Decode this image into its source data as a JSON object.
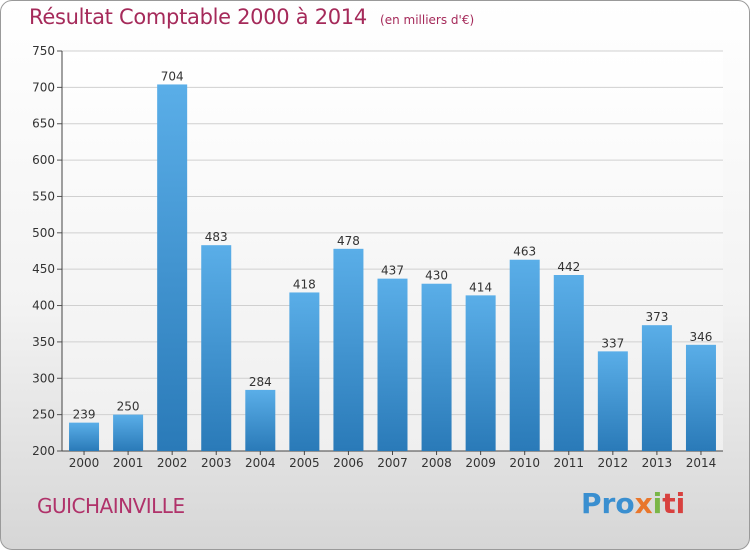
{
  "title": "Résultat Comptable 2000 à 2014",
  "subtitle": "(en milliers d'€)",
  "city": "GUICHAINVILLE",
  "logo": {
    "p1": "Pro",
    "p2": "x",
    "p3": "i",
    "p4": "ti"
  },
  "colors": {
    "bar_top": "#5aaee8",
    "bar_bottom": "#2a7ab8",
    "title": "#a52a5a",
    "grid": "#d0d0d0"
  },
  "chart_data": {
    "type": "bar",
    "title": "Résultat Comptable 2000 à 2014",
    "subtitle": "(en milliers d'€)",
    "categories": [
      "2000",
      "2001",
      "2002",
      "2003",
      "2004",
      "2005",
      "2006",
      "2007",
      "2008",
      "2009",
      "2010",
      "2011",
      "2012",
      "2013",
      "2014"
    ],
    "values": [
      239,
      250,
      704,
      483,
      284,
      418,
      478,
      437,
      430,
      414,
      463,
      442,
      337,
      373,
      346
    ],
    "ylim": [
      200,
      750
    ],
    "yticks": [
      200,
      250,
      300,
      350,
      400,
      450,
      500,
      550,
      600,
      650,
      700,
      750
    ],
    "xlabel": "",
    "ylabel": "",
    "grid": true,
    "data_labels": true
  }
}
